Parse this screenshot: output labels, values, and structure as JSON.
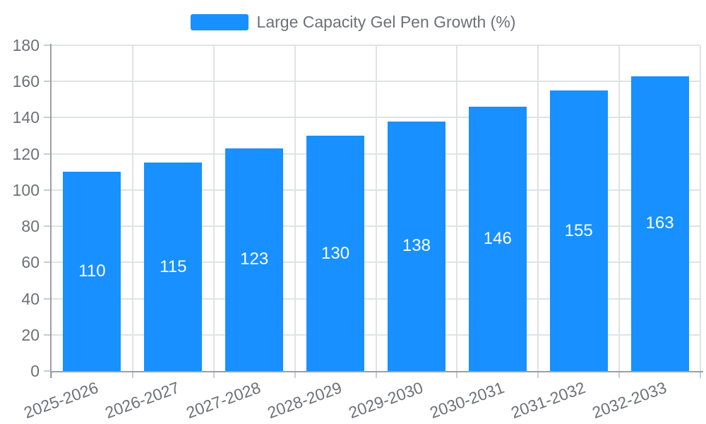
{
  "legend": {
    "label": "Large Capacity Gel Pen Growth (%)"
  },
  "colors": {
    "bar": "#1890FF",
    "axis_text": "#6E7079",
    "grid_line": "#E0E2E6",
    "axis_line": "#9CA0A6",
    "tick": "#C9CCD1",
    "value_label": "#FFFFFF",
    "background": "#FFFFFF"
  },
  "chart_data": {
    "type": "bar",
    "title": "",
    "legend_entries": [
      "Large Capacity Gel Pen Growth (%)"
    ],
    "legend_position": "top-center",
    "categories": [
      "2025-2026",
      "2026-2027",
      "2027-2028",
      "2028-2029",
      "2029-2030",
      "2030-2031",
      "2031-2032",
      "2032-2033"
    ],
    "series": [
      {
        "name": "Large Capacity Gel Pen Growth (%)",
        "values": [
          110,
          115,
          123,
          130,
          138,
          146,
          155,
          163
        ]
      }
    ],
    "xlabel": "",
    "ylabel": "",
    "ylim": [
      0,
      180
    ],
    "yticks": [
      0,
      20,
      40,
      60,
      80,
      100,
      120,
      140,
      160,
      180
    ],
    "grid": true,
    "value_labels": "inside-center",
    "x_label_rotation_deg": -20
  }
}
